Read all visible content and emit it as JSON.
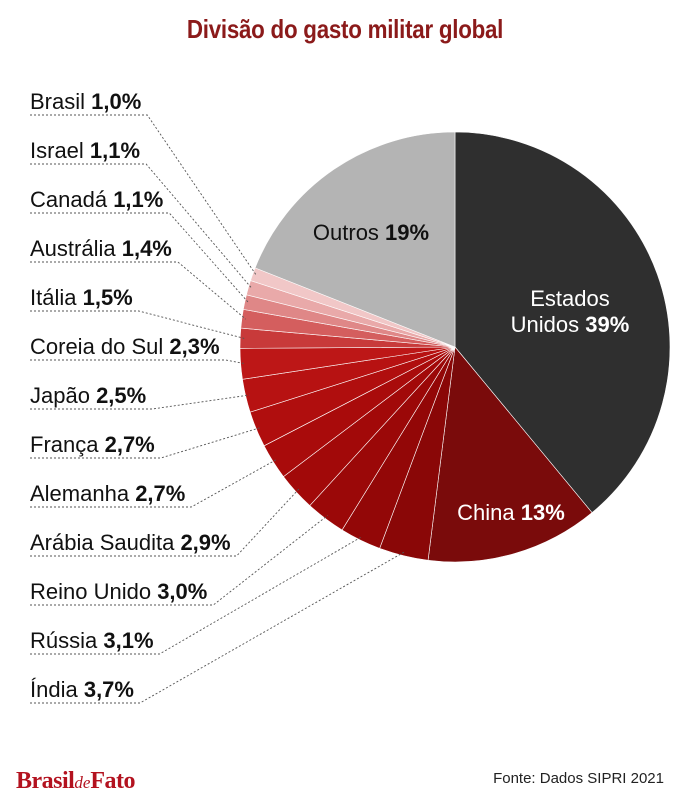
{
  "title": "Divisão do gasto militar global",
  "logo": {
    "part1": "Brasil",
    "part2": "de",
    "part3": "Fato"
  },
  "source": "Fonte: Dados SIPRI 2021",
  "chart_data": {
    "type": "pie",
    "title": "Divisão do gasto militar global",
    "slices": [
      {
        "label": "Estados Unidos",
        "value": 39,
        "value_label": "39%",
        "color": "#2f2f2f"
      },
      {
        "label": "China",
        "value": 13,
        "value_label": "13%",
        "color": "#7a0b0b"
      },
      {
        "label": "Índia",
        "value": 3.7,
        "value_label": "3,7%",
        "color": "#8a0707"
      },
      {
        "label": "Rússia",
        "value": 3.1,
        "value_label": "3,1%",
        "color": "#930707"
      },
      {
        "label": "Reino Unido",
        "value": 3.0,
        "value_label": "3,0%",
        "color": "#9b0808"
      },
      {
        "label": "Arábia Saudita",
        "value": 2.9,
        "value_label": "2,9%",
        "color": "#a20909"
      },
      {
        "label": "Alemanha",
        "value": 2.7,
        "value_label": "2,7%",
        "color": "#a90b0b"
      },
      {
        "label": "França",
        "value": 2.7,
        "value_label": "2,7%",
        "color": "#b00e0e"
      },
      {
        "label": "Japão",
        "value": 2.5,
        "value_label": "2,5%",
        "color": "#b71212"
      },
      {
        "label": "Coreia do Sul",
        "value": 2.3,
        "value_label": "2,3%",
        "color": "#bd1717"
      },
      {
        "label": "Itália",
        "value": 1.5,
        "value_label": "1,5%",
        "color": "#c83a3a"
      },
      {
        "label": "Austrália",
        "value": 1.4,
        "value_label": "1,4%",
        "color": "#d45e5e"
      },
      {
        "label": "Canadá",
        "value": 1.1,
        "value_label": "1,1%",
        "color": "#df8787"
      },
      {
        "label": "Israel",
        "value": 1.1,
        "value_label": "1,1%",
        "color": "#e9a9a9"
      },
      {
        "label": "Brasil",
        "value": 1.0,
        "value_label": "1,0%",
        "color": "#f1c7c7"
      },
      {
        "label": "Outros",
        "value": 19,
        "value_label": "19%",
        "color": "#b4b4b4"
      }
    ]
  }
}
